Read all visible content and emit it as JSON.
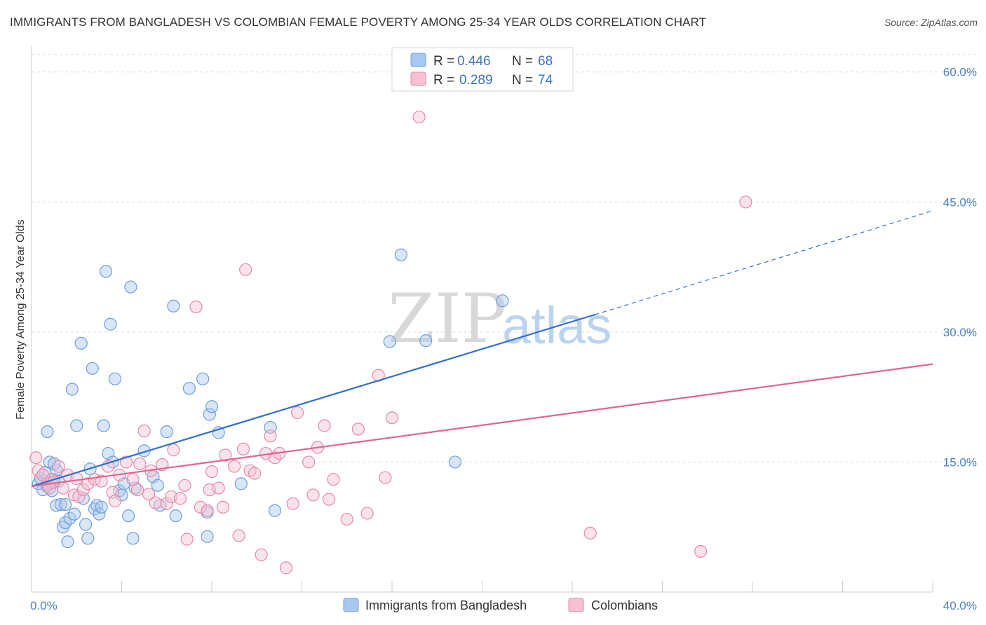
{
  "title": "IMMIGRANTS FROM BANGLADESH VS COLOMBIAN FEMALE POVERTY AMONG 25-34 YEAR OLDS CORRELATION CHART",
  "source": "Source: ZipAtlas.com",
  "watermark": {
    "zip": "ZIP",
    "atlas": "atlas"
  },
  "legend": {
    "rows": [
      {
        "r_label": "R =",
        "r_value": "0.446",
        "n_label": "N =",
        "n_value": "68",
        "color": "#a8c8f0",
        "stroke": "#6f9fd8"
      },
      {
        "r_label": "R =",
        "r_value": "0.289",
        "n_label": "N =",
        "n_value": "74",
        "color": "#f7c0d3",
        "stroke": "#e48aa9"
      }
    ]
  },
  "chart_data": {
    "type": "scatter",
    "title": "IMMIGRANTS FROM BANGLADESH VS COLOMBIAN FEMALE POVERTY AMONG 25-34 YEAR OLDS CORRELATION CHART",
    "xlabel": "",
    "ylabel": "Female Poverty Among 25-34 Year Olds",
    "xlim": [
      0,
      40
    ],
    "ylim": [
      0,
      62
    ],
    "x_tick_labels": [
      "0.0%",
      "40.0%"
    ],
    "y_ticks": [
      15,
      30,
      45,
      60
    ],
    "y_tick_labels": [
      "15.0%",
      "30.0%",
      "45.0%",
      "60.0%"
    ],
    "grid": true,
    "legend_position": "top-center",
    "series": [
      {
        "name": "Immigrants from Bangladesh",
        "color": "#a8c8f0",
        "stroke": "#6f9fd8",
        "line_color": "#2f6fcf",
        "trend": {
          "x0": 0,
          "y0": 12.2,
          "x1": 25,
          "y1": 32.0,
          "dash_to_x": 40,
          "dash_to_y": 44.0
        },
        "points": [
          [
            0.3,
            12.5
          ],
          [
            0.4,
            13.1
          ],
          [
            0.5,
            11.8
          ],
          [
            0.6,
            13.8
          ],
          [
            0.7,
            12.2
          ],
          [
            0.7,
            18.5
          ],
          [
            0.8,
            15.0
          ],
          [
            0.9,
            11.7
          ],
          [
            1.0,
            13.0
          ],
          [
            1.1,
            14.1
          ],
          [
            1.2,
            12.8
          ],
          [
            1.1,
            10.0
          ],
          [
            1.3,
            10.1
          ],
          [
            1.4,
            7.5
          ],
          [
            1.5,
            10.1
          ],
          [
            1.5,
            8.0
          ],
          [
            1.6,
            5.8
          ],
          [
            1.7,
            8.5
          ],
          [
            1.8,
            23.4
          ],
          [
            1.9,
            9.0
          ],
          [
            2.0,
            19.2
          ],
          [
            2.2,
            28.7
          ],
          [
            2.3,
            10.8
          ],
          [
            2.4,
            7.8
          ],
          [
            2.5,
            6.2
          ],
          [
            2.6,
            14.2
          ],
          [
            2.7,
            25.8
          ],
          [
            2.8,
            9.6
          ],
          [
            2.9,
            10.0
          ],
          [
            3.0,
            9.0
          ],
          [
            3.1,
            9.8
          ],
          [
            3.2,
            19.2
          ],
          [
            3.3,
            37.0
          ],
          [
            3.4,
            16.0
          ],
          [
            3.5,
            30.9
          ],
          [
            3.6,
            15.0
          ],
          [
            3.7,
            24.6
          ],
          [
            3.9,
            11.7
          ],
          [
            4.0,
            11.2
          ],
          [
            4.1,
            12.5
          ],
          [
            4.3,
            8.8
          ],
          [
            4.4,
            35.2
          ],
          [
            4.5,
            6.2
          ],
          [
            4.6,
            12.0
          ],
          [
            5.0,
            16.3
          ],
          [
            5.4,
            13.3
          ],
          [
            5.6,
            12.3
          ],
          [
            5.7,
            10.0
          ],
          [
            6.0,
            18.5
          ],
          [
            6.3,
            33.0
          ],
          [
            6.4,
            8.8
          ],
          [
            7.0,
            23.5
          ],
          [
            7.6,
            24.6
          ],
          [
            7.8,
            9.2
          ],
          [
            7.9,
            20.5
          ],
          [
            7.8,
            6.4
          ],
          [
            8.0,
            21.4
          ],
          [
            8.3,
            18.4
          ],
          [
            9.3,
            12.5
          ],
          [
            10.6,
            19.0
          ],
          [
            10.8,
            9.4
          ],
          [
            15.9,
            28.9
          ],
          [
            16.4,
            38.9
          ],
          [
            17.5,
            29.0
          ],
          [
            18.8,
            15.0
          ],
          [
            20.9,
            33.6
          ],
          [
            1.0,
            14.8
          ],
          [
            0.9,
            12.6
          ]
        ]
      },
      {
        "name": "Colombians",
        "color": "#f7c0d3",
        "stroke": "#e48aa9",
        "line_color": "#e0668f",
        "trend": {
          "x0": 0,
          "y0": 12.2,
          "x1": 40,
          "y1": 26.3
        },
        "points": [
          [
            0.2,
            15.5
          ],
          [
            0.3,
            14.0
          ],
          [
            0.5,
            13.5
          ],
          [
            0.7,
            12.5
          ],
          [
            0.9,
            13.0
          ],
          [
            1.2,
            14.5
          ],
          [
            1.4,
            12.0
          ],
          [
            1.6,
            13.5
          ],
          [
            1.9,
            11.2
          ],
          [
            2.1,
            11.0
          ],
          [
            2.3,
            11.8
          ],
          [
            2.5,
            12.5
          ],
          [
            2.8,
            13.0
          ],
          [
            3.1,
            12.8
          ],
          [
            3.4,
            14.5
          ],
          [
            3.6,
            11.5
          ],
          [
            3.9,
            13.5
          ],
          [
            4.2,
            15.0
          ],
          [
            4.5,
            13.0
          ],
          [
            4.7,
            11.8
          ],
          [
            4.8,
            14.8
          ],
          [
            5.0,
            18.6
          ],
          [
            5.3,
            14.0
          ],
          [
            5.5,
            10.3
          ],
          [
            5.8,
            14.7
          ],
          [
            6.0,
            10.2
          ],
          [
            6.2,
            11.0
          ],
          [
            6.3,
            16.4
          ],
          [
            6.6,
            10.8
          ],
          [
            6.8,
            12.3
          ],
          [
            6.9,
            6.1
          ],
          [
            7.3,
            32.9
          ],
          [
            7.5,
            9.8
          ],
          [
            7.8,
            9.4
          ],
          [
            7.9,
            11.8
          ],
          [
            8.0,
            13.9
          ],
          [
            8.3,
            12.0
          ],
          [
            8.5,
            9.8
          ],
          [
            8.6,
            15.8
          ],
          [
            9.0,
            14.5
          ],
          [
            9.2,
            6.5
          ],
          [
            9.4,
            16.5
          ],
          [
            9.5,
            37.2
          ],
          [
            9.7,
            14.0
          ],
          [
            9.9,
            13.7
          ],
          [
            10.2,
            4.3
          ],
          [
            10.4,
            16.0
          ],
          [
            10.6,
            18.0
          ],
          [
            10.8,
            15.5
          ],
          [
            11.0,
            16.0
          ],
          [
            11.3,
            2.8
          ],
          [
            11.6,
            10.2
          ],
          [
            11.8,
            20.7
          ],
          [
            12.3,
            15.0
          ],
          [
            12.5,
            11.2
          ],
          [
            12.7,
            16.7
          ],
          [
            13.0,
            19.2
          ],
          [
            13.2,
            10.7
          ],
          [
            13.4,
            13.0
          ],
          [
            14.0,
            8.4
          ],
          [
            14.5,
            18.8
          ],
          [
            14.9,
            9.1
          ],
          [
            15.4,
            25.0
          ],
          [
            15.7,
            13.2
          ],
          [
            16.0,
            20.1
          ],
          [
            17.2,
            54.8
          ],
          [
            24.8,
            6.8
          ],
          [
            31.7,
            45.0
          ],
          [
            29.7,
            4.7
          ],
          [
            1.0,
            12.7
          ],
          [
            2.0,
            13.1
          ],
          [
            0.8,
            12.0
          ],
          [
            3.7,
            10.5
          ],
          [
            5.2,
            11.3
          ]
        ]
      }
    ]
  },
  "bottom_legend": [
    "Immigrants from Bangladesh",
    "Colombians"
  ]
}
